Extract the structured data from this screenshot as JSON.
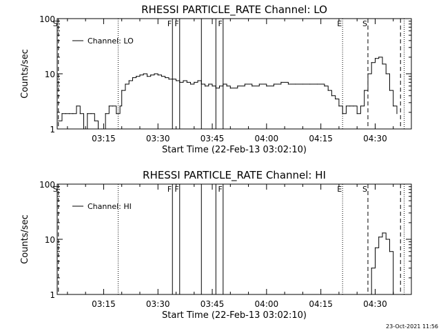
{
  "colors": {
    "background": "#ffffff",
    "foreground": "#000000"
  },
  "footer": "23-Oct-2021 11:56",
  "chart_data": [
    {
      "type": "line",
      "title": "RHESSI PARTICLE_RATE Channel: LO",
      "xlabel": "Start Time (22-Feb-13 03:02:10)",
      "ylabel": "Counts/sec",
      "x_ticks": [
        "03:15",
        "03:30",
        "03:45",
        "04:00",
        "04:15",
        "04:30"
      ],
      "y_ticks": [
        "1",
        "10",
        "100"
      ],
      "y_scale": "log",
      "ylim": [
        1,
        100
      ],
      "xlim": [
        "03:02:10",
        "04:40:00"
      ],
      "legend": {
        "position": "top-left",
        "entries": [
          "Channel: LO"
        ]
      },
      "series": [
        {
          "name": "Channel: LO",
          "x": [
            "03:02:30",
            "03:03:30",
            "03:04:30",
            "03:05:30",
            "03:06:30",
            "03:07:30",
            "03:08:30",
            "03:09:30",
            "03:10:30",
            "03:11:30",
            "03:12:30",
            "03:13:30",
            "03:14:30",
            "03:15:30",
            "03:16:30",
            "03:17:30",
            "03:18:30",
            "03:19:30",
            "03:20:00",
            "03:21:00",
            "03:22:00",
            "03:23:00",
            "03:24:00",
            "03:25:00",
            "03:26:00",
            "03:27:00",
            "03:28:00",
            "03:29:00",
            "03:30:00",
            "03:31:00",
            "03:32:00",
            "03:33:00",
            "03:34:00",
            "03:35:00",
            "03:36:00",
            "03:37:00",
            "03:38:00",
            "03:39:00",
            "03:40:00",
            "03:41:00",
            "03:42:00",
            "03:43:00",
            "03:44:00",
            "03:45:00",
            "03:46:00",
            "03:47:00",
            "03:48:00",
            "03:49:00",
            "03:50:00",
            "03:52:00",
            "03:54:00",
            "03:56:00",
            "03:58:00",
            "04:00:00",
            "04:02:00",
            "04:04:00",
            "04:06:00",
            "04:08:00",
            "04:10:00",
            "04:12:00",
            "04:14:00",
            "04:16:00",
            "04:17:00",
            "04:18:00",
            "04:19:00",
            "04:20:00",
            "04:21:00",
            "04:22:00",
            "04:23:00",
            "04:24:00",
            "04:25:00",
            "04:26:00",
            "04:27:00",
            "04:28:00",
            "04:29:00",
            "04:30:00",
            "04:31:00",
            "04:32:00",
            "04:33:00",
            "04:34:00",
            "04:35:00",
            "04:36:00"
          ],
          "values": [
            1.4,
            1.9,
            1.9,
            1.9,
            1.9,
            2.6,
            1.9,
            1.0,
            1.9,
            1.9,
            1.4,
            1.0,
            1.0,
            1.9,
            2.6,
            2.6,
            1.9,
            2.6,
            5.0,
            6.5,
            7.5,
            8.5,
            9.0,
            9.5,
            10.0,
            9.0,
            9.5,
            10.0,
            9.5,
            9.0,
            8.5,
            8.0,
            8.0,
            7.5,
            7.0,
            7.5,
            7.0,
            6.5,
            7.0,
            7.5,
            6.5,
            6.0,
            6.5,
            6.0,
            5.5,
            6.0,
            6.5,
            6.0,
            5.5,
            6.0,
            6.5,
            6.0,
            6.5,
            6.0,
            6.5,
            7.0,
            6.5,
            6.5,
            6.5,
            6.5,
            6.5,
            6.0,
            5.0,
            4.0,
            3.5,
            2.6,
            1.9,
            2.6,
            2.6,
            2.6,
            1.9,
            2.6,
            5.0,
            10.0,
            16.0,
            19.0,
            20.0,
            15.0,
            10.0,
            5.0,
            2.6,
            1.9
          ]
        }
      ],
      "markers": [
        {
          "time": "03:02:30",
          "style": "dashed",
          "label": "S"
        },
        {
          "time": "03:19:00",
          "style": "dotted",
          "label": ""
        },
        {
          "time": "03:34:00",
          "style": "solid",
          "label": "F"
        },
        {
          "time": "03:36:00",
          "style": "solid",
          "label": "F"
        },
        {
          "time": "03:42:00",
          "style": "solid",
          "label": ""
        },
        {
          "time": "03:46:00",
          "style": "solid",
          "label": ""
        },
        {
          "time": "03:48:00",
          "style": "solid",
          "label": "F"
        },
        {
          "time": "04:21:00",
          "style": "dotted",
          "label": "E"
        },
        {
          "time": "04:28:00",
          "style": "dashed",
          "label": "S"
        },
        {
          "time": "04:37:00",
          "style": "dashed",
          "label": ""
        },
        {
          "time": "04:38:00",
          "style": "dotted",
          "label": ""
        }
      ]
    },
    {
      "type": "line",
      "title": "RHESSI PARTICLE_RATE Channel: HI",
      "xlabel": "Start Time (22-Feb-13 03:02:10)",
      "ylabel": "Counts/sec",
      "x_ticks": [
        "03:15",
        "03:30",
        "03:45",
        "04:00",
        "04:15",
        "04:30"
      ],
      "y_ticks": [
        "1",
        "10",
        "100"
      ],
      "y_scale": "log",
      "ylim": [
        1,
        100
      ],
      "xlim": [
        "03:02:10",
        "04:40:00"
      ],
      "legend": {
        "position": "top-left",
        "entries": [
          "Channel: HI"
        ]
      },
      "series": [
        {
          "name": "Channel: HI",
          "x": [
            "04:28:00",
            "04:29:00",
            "04:30:00",
            "04:31:00",
            "04:32:00",
            "04:33:00",
            "04:34:00",
            "04:35:00"
          ],
          "values": [
            1.0,
            3.0,
            7.0,
            11.0,
            13.0,
            10.0,
            6.0,
            1.0
          ]
        }
      ],
      "markers": [
        {
          "time": "03:02:30",
          "style": "dashed",
          "label": "S"
        },
        {
          "time": "03:19:00",
          "style": "dotted",
          "label": ""
        },
        {
          "time": "03:34:00",
          "style": "solid",
          "label": "F"
        },
        {
          "time": "03:36:00",
          "style": "solid",
          "label": "F"
        },
        {
          "time": "03:42:00",
          "style": "solid",
          "label": ""
        },
        {
          "time": "03:46:00",
          "style": "solid",
          "label": ""
        },
        {
          "time": "03:48:00",
          "style": "solid",
          "label": "F"
        },
        {
          "time": "04:21:00",
          "style": "dotted",
          "label": "E"
        },
        {
          "time": "04:28:00",
          "style": "dashed",
          "label": "S"
        },
        {
          "time": "04:37:00",
          "style": "dashed",
          "label": ""
        },
        {
          "time": "04:38:00",
          "style": "dotted",
          "label": ""
        }
      ]
    }
  ]
}
